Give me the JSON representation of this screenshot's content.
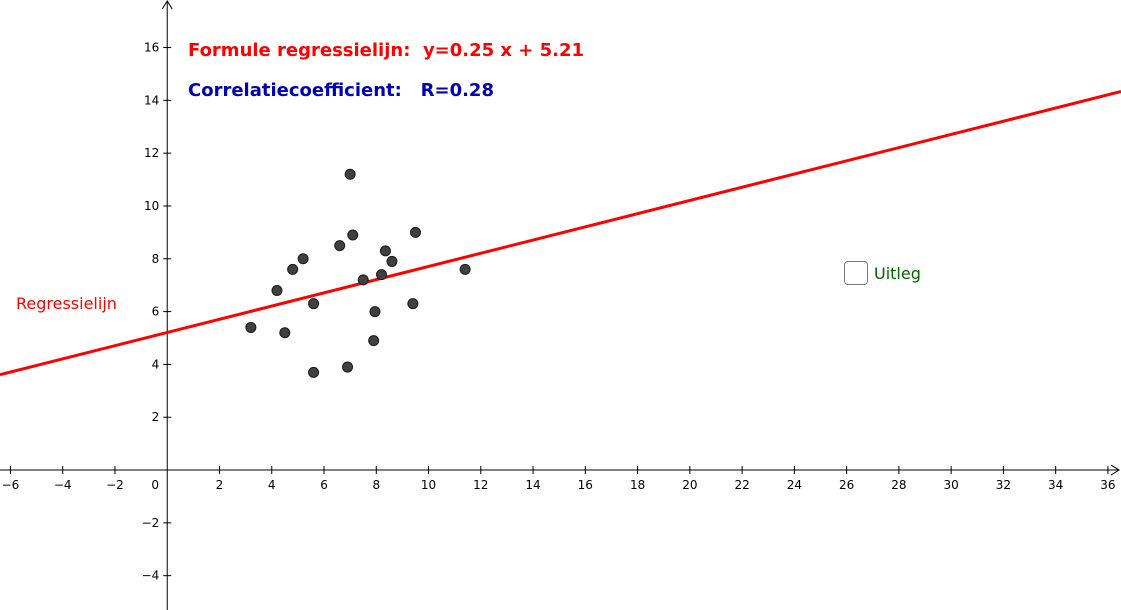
{
  "texts": {
    "formula": "Formule regressielijn:  y=0.25 x + 5.21",
    "correlation": "Correlatiecoefficient:   R=0.28",
    "line_label": "Regressielijn",
    "checkbox_label": "Uitleg"
  },
  "colors": {
    "formula": "#ff0000",
    "correlation": "#0000b4",
    "line": "#ff0000",
    "line_label": "#ff0000",
    "checkbox_label": "#006400",
    "point": "#404040"
  },
  "checkbox": {
    "checked": false
  },
  "chart_data": {
    "type": "scatter",
    "title": "",
    "xlabel": "",
    "ylabel": "",
    "xlim": [
      -6.4,
      36.5
    ],
    "ylim": [
      -5.3,
      17.8
    ],
    "grid": false,
    "x_ticks": [
      -6,
      -4,
      -2,
      0,
      2,
      4,
      6,
      8,
      10,
      12,
      14,
      16,
      18,
      20,
      22,
      24,
      26,
      28,
      30,
      32,
      34,
      36
    ],
    "y_ticks": [
      -4,
      -2,
      2,
      4,
      6,
      8,
      10,
      12,
      14,
      16
    ],
    "points": [
      {
        "x": 3.2,
        "y": 5.4
      },
      {
        "x": 4.2,
        "y": 6.8
      },
      {
        "x": 4.5,
        "y": 5.2
      },
      {
        "x": 4.8,
        "y": 7.6
      },
      {
        "x": 5.2,
        "y": 8.0
      },
      {
        "x": 5.6,
        "y": 6.3
      },
      {
        "x": 5.6,
        "y": 3.7
      },
      {
        "x": 6.6,
        "y": 8.5
      },
      {
        "x": 6.9,
        "y": 3.9
      },
      {
        "x": 7.0,
        "y": 11.2
      },
      {
        "x": 7.1,
        "y": 8.9
      },
      {
        "x": 7.5,
        "y": 7.2
      },
      {
        "x": 7.9,
        "y": 4.9
      },
      {
        "x": 7.95,
        "y": 6.0
      },
      {
        "x": 8.2,
        "y": 7.4
      },
      {
        "x": 8.35,
        "y": 8.3
      },
      {
        "x": 8.6,
        "y": 7.9
      },
      {
        "x": 9.4,
        "y": 6.3
      },
      {
        "x": 9.5,
        "y": 9.0
      },
      {
        "x": 11.4,
        "y": 7.6
      }
    ],
    "regression": {
      "slope": 0.25,
      "intercept": 5.21
    }
  }
}
